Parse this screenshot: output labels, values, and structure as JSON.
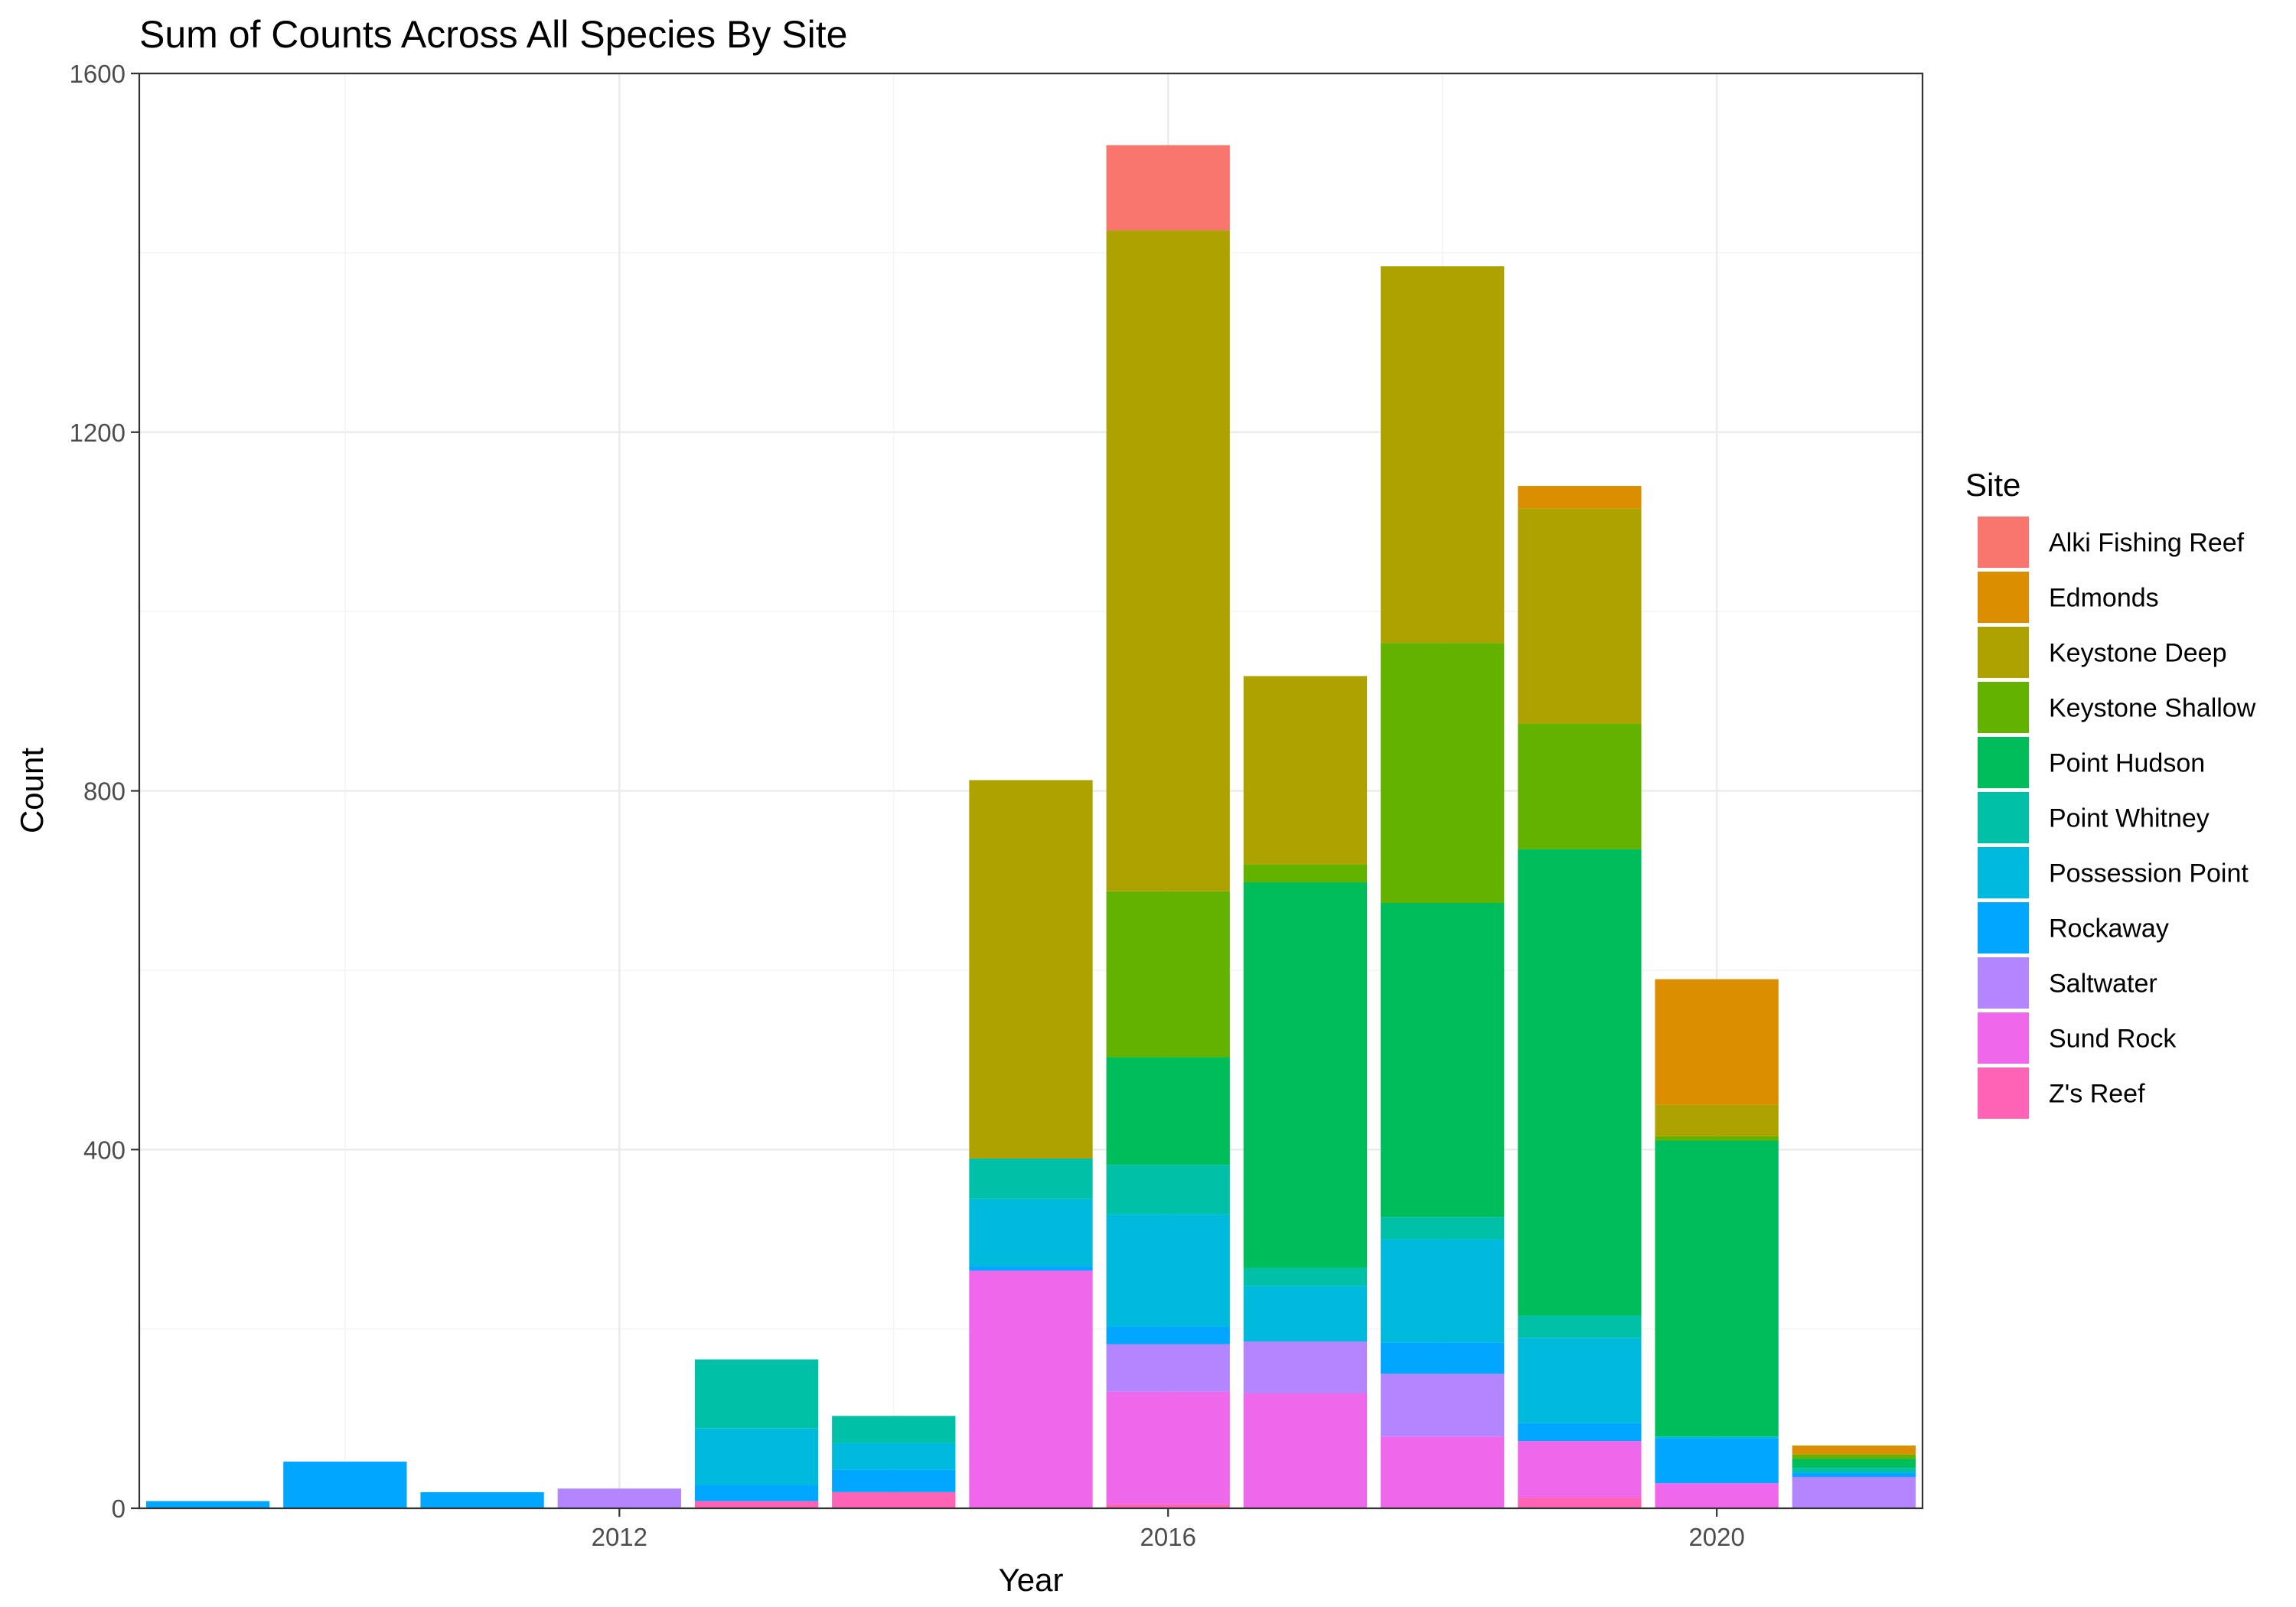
{
  "chart_data": {
    "type": "bar",
    "stacked": true,
    "title": "Sum of Counts Across All Species By Site",
    "xlabel": "Year",
    "ylabel": "Count",
    "ylim": [
      0,
      1600
    ],
    "xlim": [
      2008.5,
      2021.5
    ],
    "yticks": [
      0,
      400,
      800,
      1200,
      1600
    ],
    "xticks": [
      2012,
      2016,
      2020
    ],
    "grid": true,
    "legend_position": "right",
    "legend_title": "Site",
    "categories": [
      2009,
      2010,
      2011,
      2012,
      2013,
      2014,
      2015,
      2016,
      2017,
      2018,
      2019,
      2020,
      2021
    ],
    "series": [
      {
        "name": "Alki Fishing Reef",
        "color": "#F8766D",
        "values": [
          0,
          0,
          0,
          0,
          0,
          0,
          0,
          95,
          0,
          0,
          0,
          0,
          0
        ]
      },
      {
        "name": "Edmonds",
        "color": "#DB8E00",
        "values": [
          0,
          0,
          0,
          0,
          0,
          0,
          0,
          0,
          0,
          0,
          25,
          140,
          10
        ]
      },
      {
        "name": "Keystone Deep",
        "color": "#AEA200",
        "values": [
          0,
          0,
          0,
          0,
          0,
          0,
          422,
          737,
          210,
          420,
          240,
          35,
          0
        ]
      },
      {
        "name": "Keystone Shallow",
        "color": "#64B200",
        "values": [
          0,
          0,
          0,
          0,
          0,
          0,
          0,
          185,
          20,
          290,
          140,
          5,
          5
        ]
      },
      {
        "name": "Point Hudson",
        "color": "#00BD5C",
        "values": [
          0,
          0,
          0,
          0,
          0,
          0,
          0,
          120,
          430,
          350,
          520,
          330,
          10
        ]
      },
      {
        "name": "Point Whitney",
        "color": "#00C1A7",
        "values": [
          0,
          0,
          0,
          0,
          77,
          30,
          45,
          55,
          20,
          25,
          25,
          0,
          5
        ]
      },
      {
        "name": "Possession Point",
        "color": "#00BADE",
        "values": [
          0,
          0,
          0,
          0,
          63,
          30,
          75,
          125,
          62,
          115,
          95,
          2,
          0
        ]
      },
      {
        "name": "Rockaway",
        "color": "#00A6FF",
        "values": [
          8,
          52,
          18,
          0,
          18,
          25,
          5,
          20,
          0,
          35,
          20,
          50,
          5
        ]
      },
      {
        "name": "Saltwater",
        "color": "#B385FF",
        "values": [
          0,
          0,
          0,
          22,
          0,
          0,
          0,
          53,
          58,
          70,
          0,
          0,
          35
        ]
      },
      {
        "name": "Sund Rock",
        "color": "#EF67EB",
        "values": [
          0,
          0,
          0,
          0,
          0,
          0,
          265,
          125,
          128,
          80,
          63,
          28,
          0
        ]
      },
      {
        "name": "Z's Reef",
        "color": "#FF63B6",
        "values": [
          0,
          0,
          0,
          0,
          8,
          18,
          0,
          5,
          0,
          0,
          12,
          0,
          0
        ]
      }
    ]
  }
}
